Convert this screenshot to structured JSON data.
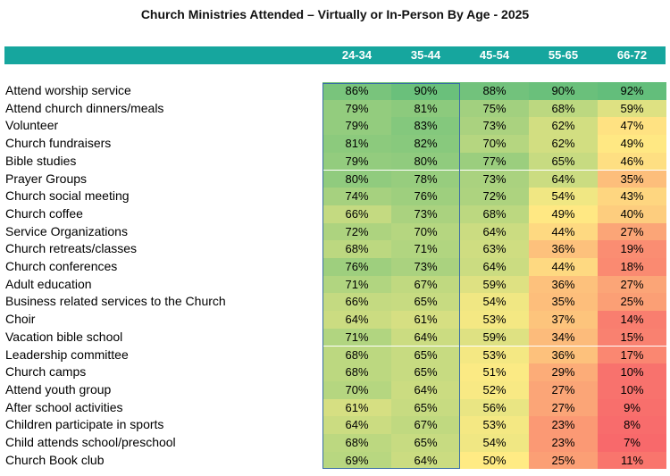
{
  "chart_data": {
    "type": "table",
    "title": "Church Ministries Attended – Virtually or In-Person By Age - 2025",
    "columns": [
      "24-34",
      "35-44",
      "45-54",
      "55-65",
      "66-72"
    ],
    "highlighted_columns": [
      "24-34",
      "35-44"
    ],
    "header_color": "#16a69e",
    "highlight_border_color": "#3a6ea5",
    "color_scale": {
      "low": "#f8696b",
      "mid": "#ffeb84",
      "high": "#63be7b"
    },
    "rows": [
      {
        "label": "Attend worship service",
        "values": [
          86,
          90,
          88,
          90,
          92
        ]
      },
      {
        "label": "Attend church dinners/meals",
        "values": [
          79,
          81,
          75,
          68,
          59
        ]
      },
      {
        "label": "Volunteer",
        "values": [
          79,
          83,
          73,
          62,
          47
        ]
      },
      {
        "label": "Church fundraisers",
        "values": [
          81,
          82,
          70,
          62,
          49
        ]
      },
      {
        "label": "Bible studies",
        "values": [
          79,
          80,
          77,
          65,
          46
        ]
      },
      {
        "label": "Prayer Groups",
        "values": [
          80,
          78,
          73,
          64,
          35
        ]
      },
      {
        "label": "Church social meeting",
        "values": [
          74,
          76,
          72,
          54,
          43
        ]
      },
      {
        "label": "Church coffee",
        "values": [
          66,
          73,
          68,
          49,
          40
        ]
      },
      {
        "label": "Service Organizations",
        "values": [
          72,
          70,
          64,
          44,
          27
        ]
      },
      {
        "label": "Church retreats/classes",
        "values": [
          68,
          71,
          63,
          36,
          19
        ]
      },
      {
        "label": "Church conferences",
        "values": [
          76,
          73,
          64,
          44,
          18
        ]
      },
      {
        "label": "Adult education",
        "values": [
          71,
          67,
          59,
          36,
          27
        ]
      },
      {
        "label": "Business related services to the Church",
        "values": [
          66,
          65,
          54,
          35,
          25
        ]
      },
      {
        "label": "Choir",
        "values": [
          64,
          61,
          53,
          37,
          14
        ]
      },
      {
        "label": "Vacation bible school",
        "values": [
          71,
          64,
          59,
          34,
          15
        ]
      },
      {
        "label": "Leadership committee",
        "values": [
          68,
          65,
          53,
          36,
          17
        ]
      },
      {
        "label": "Church camps",
        "values": [
          68,
          65,
          51,
          29,
          10
        ]
      },
      {
        "label": "Attend youth group",
        "values": [
          70,
          64,
          52,
          27,
          10
        ]
      },
      {
        "label": "After school activities",
        "values": [
          61,
          65,
          56,
          27,
          9
        ]
      },
      {
        "label": "Children participate in sports",
        "values": [
          64,
          67,
          53,
          23,
          8
        ]
      },
      {
        "label": "Child attends school/preschool",
        "values": [
          68,
          65,
          54,
          23,
          7
        ]
      },
      {
        "label": "Church Book club",
        "values": [
          69,
          64,
          50,
          25,
          11
        ]
      }
    ]
  }
}
